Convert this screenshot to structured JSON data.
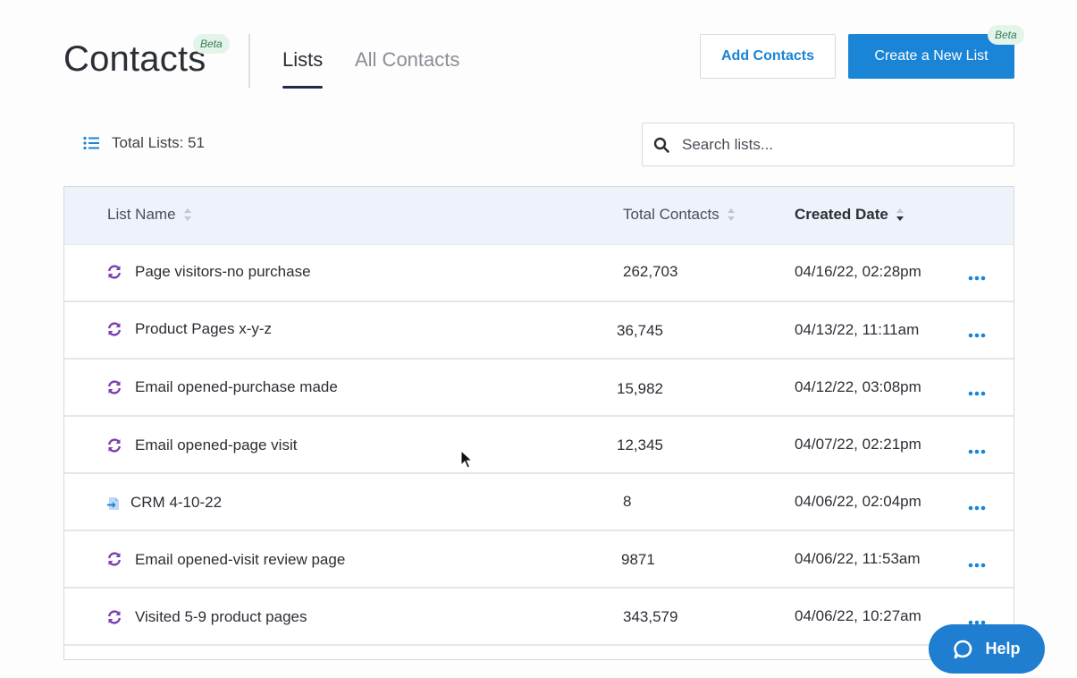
{
  "header": {
    "title": "Contacts",
    "title_badge": "Beta",
    "tabs": [
      {
        "label": "Lists",
        "active": true
      },
      {
        "label": "All Contacts",
        "active": false
      }
    ],
    "add_contacts_label": "Add Contacts",
    "create_list_label": "Create a New List",
    "create_list_badge": "Beta"
  },
  "toolbar": {
    "total_lists": "Total Lists: 51",
    "search_placeholder": "Search lists..."
  },
  "table": {
    "columns": [
      {
        "label": "List Name",
        "sort": "none"
      },
      {
        "label": "Total Contacts",
        "sort": "none"
      },
      {
        "label": "Created Date",
        "sort": "desc"
      }
    ],
    "rows": [
      {
        "icon": "sync-icon",
        "name": "Page visitors-no purchase",
        "contacts": "262,703",
        "created": "04/16/22, 02:28pm"
      },
      {
        "icon": "sync-icon",
        "name": "Product Pages x-y-z",
        "contacts": "36,745",
        "created": "04/13/22, 11:11am"
      },
      {
        "icon": "sync-icon",
        "name": "Email opened-purchase made",
        "contacts": "15,982",
        "created": "04/12/22, 03:08pm"
      },
      {
        "icon": "sync-icon",
        "name": "Email opened-page visit",
        "contacts": "12,345",
        "created": "04/07/22, 02:21pm"
      },
      {
        "icon": "import-file-icon",
        "name": "CRM 4-10-22",
        "contacts": "8",
        "created": "04/06/22, 02:04pm"
      },
      {
        "icon": "sync-icon",
        "name": "Email opened-visit review page",
        "contacts": "9871",
        "created": "04/06/22, 11:53am"
      },
      {
        "icon": "sync-icon",
        "name": "Visited 5-9 product pages",
        "contacts": "343,579",
        "created": "04/06/22, 10:27am"
      }
    ]
  },
  "help": {
    "label": "Help"
  },
  "colors": {
    "accent": "#1a84d6",
    "sync_icon": "#7b3fb0",
    "badge_bg": "#e3f4ea",
    "header_bg": "#eef3fb"
  }
}
